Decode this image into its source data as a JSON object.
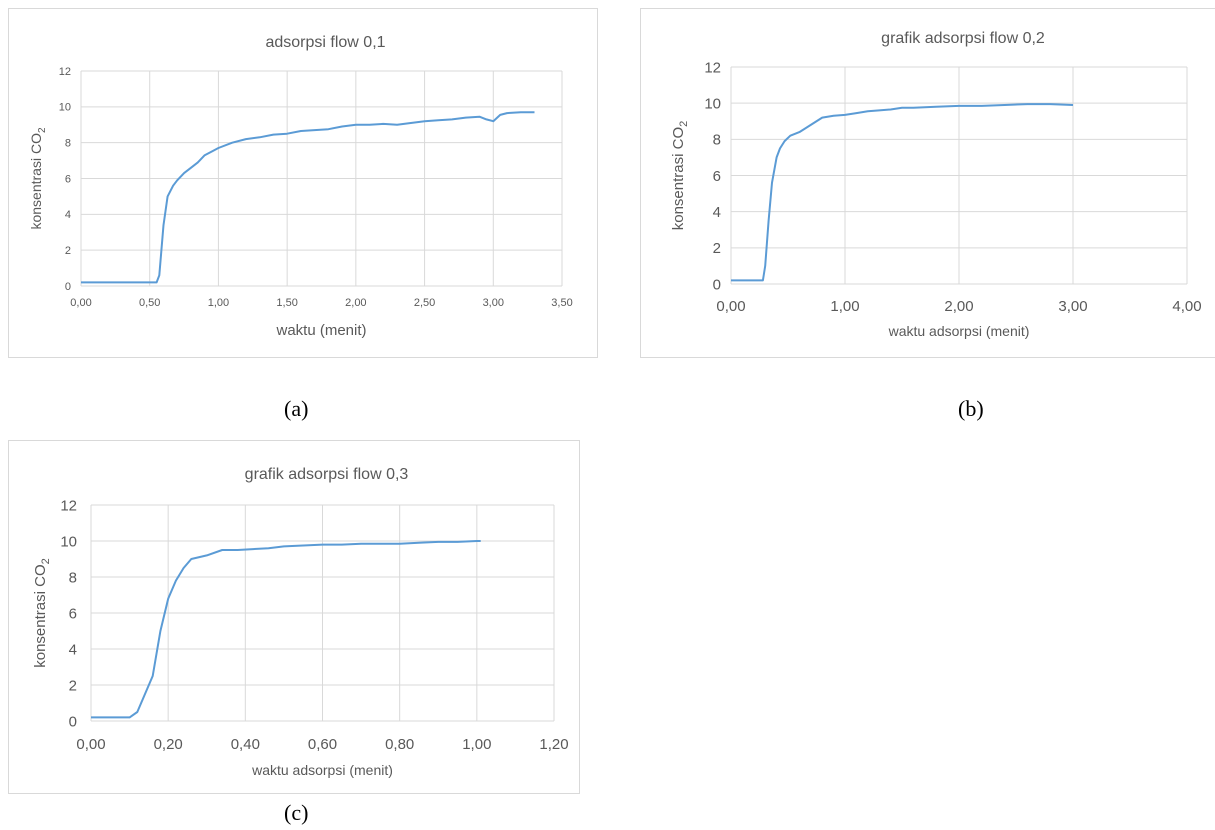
{
  "chart_data": [
    {
      "type": "line",
      "title": "adsorpsi flow 0,1",
      "xlabel": "waktu (menit)",
      "ylabel": "konsentrasi CO",
      "ylabel_sub": "2",
      "xlim": [
        0,
        3.5
      ],
      "ylim": [
        0,
        12
      ],
      "x_ticks": [
        "0,00",
        "0,50",
        "1,00",
        "1,50",
        "2,00",
        "2,50",
        "3,00",
        "3,50"
      ],
      "y_ticks": [
        "0",
        "2",
        "4",
        "6",
        "8",
        "10",
        "12"
      ],
      "grid": true,
      "series": [
        {
          "color": "#5b9bd5",
          "x": [
            0,
            0.5,
            0.55,
            0.57,
            0.6,
            0.63,
            0.67,
            0.7,
            0.75,
            0.8,
            0.85,
            0.9,
            0.95,
            1.0,
            1.1,
            1.2,
            1.3,
            1.4,
            1.5,
            1.6,
            1.7,
            1.8,
            1.9,
            2.0,
            2.1,
            2.2,
            2.3,
            2.4,
            2.5,
            2.6,
            2.7,
            2.8,
            2.9,
            2.95,
            3.0,
            3.05,
            3.1,
            3.2,
            3.3
          ],
          "y": [
            0.2,
            0.2,
            0.2,
            0.6,
            3.4,
            5.0,
            5.6,
            5.9,
            6.3,
            6.6,
            6.9,
            7.3,
            7.5,
            7.7,
            8.0,
            8.2,
            8.3,
            8.45,
            8.5,
            8.65,
            8.7,
            8.75,
            8.9,
            9.0,
            9.0,
            9.05,
            9.0,
            9.1,
            9.2,
            9.25,
            9.3,
            9.4,
            9.45,
            9.3,
            9.2,
            9.55,
            9.65,
            9.7,
            9.7
          ]
        }
      ]
    },
    {
      "type": "line",
      "title": "grafik adsorpsi flow 0,2",
      "xlabel": "waktu adsorpsi (menit)",
      "ylabel": "konsentrasi CO",
      "ylabel_sub": "2",
      "xlim": [
        0,
        4
      ],
      "ylim": [
        0,
        12
      ],
      "x_ticks": [
        "0,00",
        "1,00",
        "2,00",
        "3,00",
        "4,00"
      ],
      "y_ticks": [
        "0",
        "2",
        "4",
        "6",
        "8",
        "10",
        "12"
      ],
      "grid": true,
      "series": [
        {
          "color": "#5b9bd5",
          "x": [
            0,
            0.28,
            0.3,
            0.33,
            0.36,
            0.4,
            0.43,
            0.47,
            0.52,
            0.6,
            0.7,
            0.8,
            0.9,
            1.0,
            1.1,
            1.2,
            1.3,
            1.4,
            1.5,
            1.6,
            1.8,
            2.0,
            2.2,
            2.4,
            2.6,
            2.8,
            3.0
          ],
          "y": [
            0.2,
            0.2,
            1.0,
            3.5,
            5.6,
            7.0,
            7.5,
            7.9,
            8.2,
            8.4,
            8.8,
            9.2,
            9.3,
            9.35,
            9.45,
            9.55,
            9.6,
            9.65,
            9.75,
            9.75,
            9.8,
            9.85,
            9.85,
            9.9,
            9.95,
            9.95,
            9.9
          ]
        }
      ]
    },
    {
      "type": "line",
      "title": "grafik adsorpsi flow 0,3",
      "xlabel": "waktu adsorpsi (menit)",
      "ylabel": "konsentrasi CO",
      "ylabel_sub": "2",
      "xlim": [
        0,
        1.2
      ],
      "ylim": [
        0,
        12
      ],
      "x_ticks": [
        "0,00",
        "0,20",
        "0,40",
        "0,60",
        "0,80",
        "1,00",
        "1,20"
      ],
      "y_ticks": [
        "0",
        "2",
        "4",
        "6",
        "8",
        "10",
        "12"
      ],
      "grid": true,
      "series": [
        {
          "color": "#5b9bd5",
          "x": [
            0,
            0.1,
            0.12,
            0.14,
            0.16,
            0.18,
            0.2,
            0.22,
            0.24,
            0.26,
            0.3,
            0.34,
            0.38,
            0.42,
            0.46,
            0.5,
            0.55,
            0.6,
            0.65,
            0.7,
            0.75,
            0.8,
            0.85,
            0.9,
            0.95,
            1.0,
            1.01
          ],
          "y": [
            0.2,
            0.2,
            0.5,
            1.5,
            2.5,
            5.0,
            6.8,
            7.8,
            8.5,
            9.0,
            9.2,
            9.5,
            9.5,
            9.55,
            9.6,
            9.7,
            9.75,
            9.8,
            9.8,
            9.85,
            9.85,
            9.85,
            9.9,
            9.95,
            9.95,
            10.0,
            10.0
          ]
        }
      ]
    }
  ],
  "captions": [
    "(a)",
    "(b)",
    "(c)"
  ]
}
